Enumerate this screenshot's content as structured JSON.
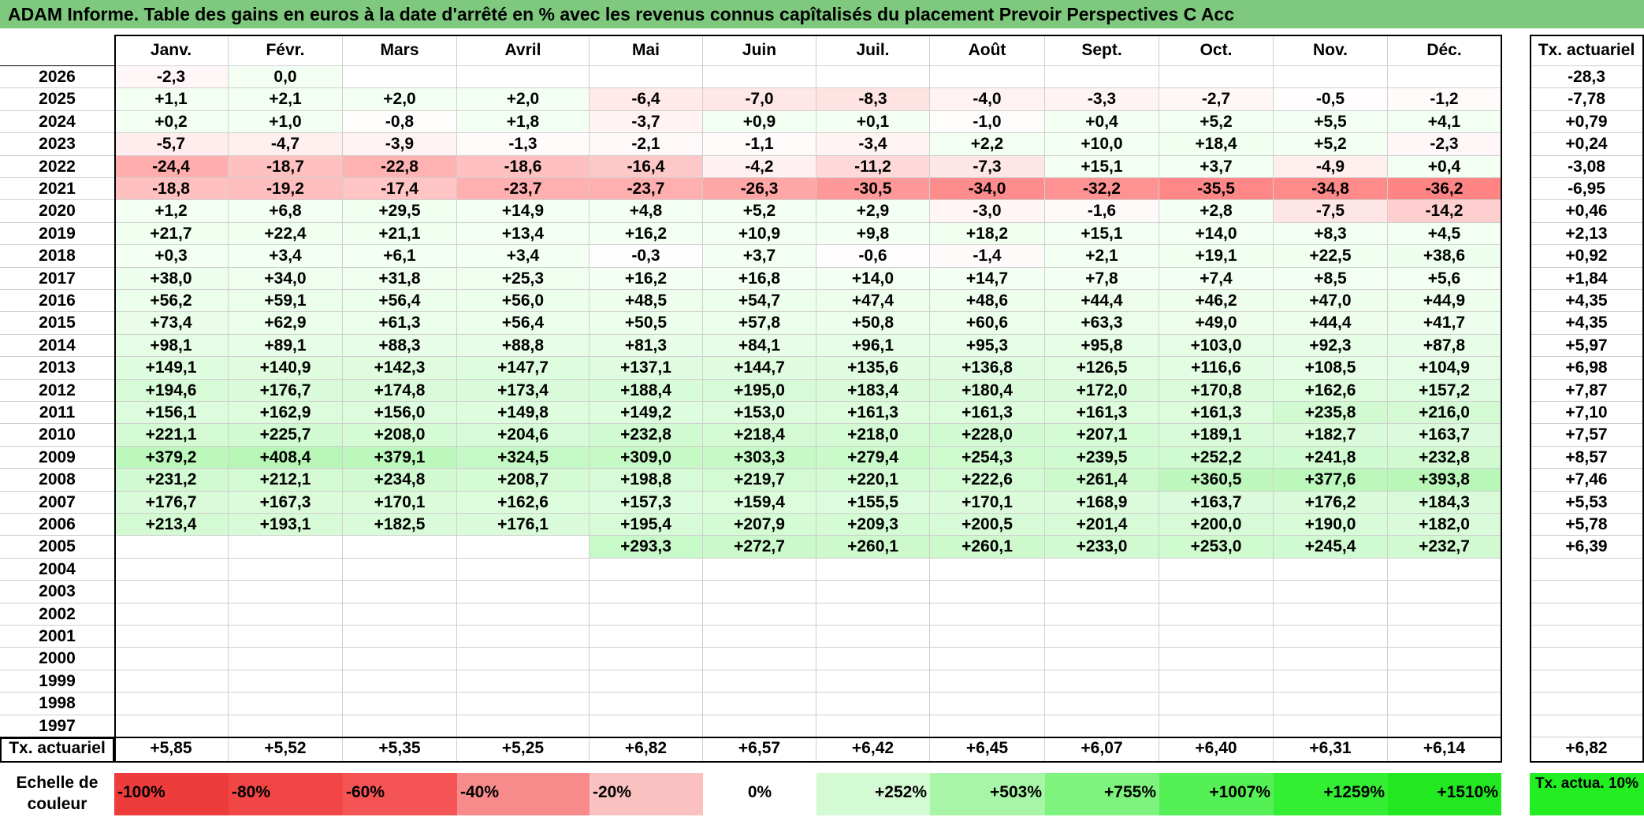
{
  "title": "ADAM Informe. Table des gains en euros à la date d'arrêté en % avec les revenus connus capîtalisés du placement Prevoir Perspectives C Acc",
  "header": {
    "months": [
      "Janv.",
      "Févr.",
      "Mars",
      "Avril",
      "Mai",
      "Juin",
      "Juil.",
      "Août",
      "Sept.",
      "Oct.",
      "Nov.",
      "Déc."
    ],
    "tx_label": "Tx. actuariel"
  },
  "chart_data": {
    "type": "table",
    "title": "ADAM Informe. Table des gains en euros à la date d'arrêté en % avec les revenus connus capîtalisés du placement Prevoir Perspectives C Acc",
    "columns": [
      "Janv.",
      "Févr.",
      "Mars",
      "Avril",
      "Mai",
      "Juin",
      "Juil.",
      "Août",
      "Sept.",
      "Oct.",
      "Nov.",
      "Déc.",
      "Tx. actuariel"
    ],
    "rows": [
      {
        "year": "2026",
        "values": [
          "-2,3",
          "0,0",
          "",
          "",
          "",
          "",
          "",
          "",
          "",
          "",
          "",
          ""
        ],
        "tx": "-28,3"
      },
      {
        "year": "2025",
        "values": [
          "+1,1",
          "+2,1",
          "+2,0",
          "+2,0",
          "-6,4",
          "-7,0",
          "-8,3",
          "-4,0",
          "-3,3",
          "-2,7",
          "-0,5",
          "-1,2"
        ],
        "tx": "-7,78"
      },
      {
        "year": "2024",
        "values": [
          "+0,2",
          "+1,0",
          "-0,8",
          "+1,8",
          "-3,7",
          "+0,9",
          "+0,1",
          "-1,0",
          "+0,4",
          "+5,2",
          "+5,5",
          "+4,1"
        ],
        "tx": "+0,79"
      },
      {
        "year": "2023",
        "values": [
          "-5,7",
          "-4,7",
          "-3,9",
          "-1,3",
          "-2,1",
          "-1,1",
          "-3,4",
          "+2,2",
          "+10,0",
          "+18,4",
          "+5,2",
          "-2,3"
        ],
        "tx": "+0,24"
      },
      {
        "year": "2022",
        "values": [
          "-24,4",
          "-18,7",
          "-22,8",
          "-18,6",
          "-16,4",
          "-4,2",
          "-11,2",
          "-7,3",
          "+15,1",
          "+3,7",
          "-4,9",
          "+0,4"
        ],
        "tx": "-3,08"
      },
      {
        "year": "2021",
        "values": [
          "-18,8",
          "-19,2",
          "-17,4",
          "-23,7",
          "-23,7",
          "-26,3",
          "-30,5",
          "-34,0",
          "-32,2",
          "-35,5",
          "-34,8",
          "-36,2"
        ],
        "tx": "-6,95"
      },
      {
        "year": "2020",
        "values": [
          "+1,2",
          "+6,8",
          "+29,5",
          "+14,9",
          "+4,8",
          "+5,2",
          "+2,9",
          "-3,0",
          "-1,6",
          "+2,8",
          "-7,5",
          "-14,2"
        ],
        "tx": "+0,46"
      },
      {
        "year": "2019",
        "values": [
          "+21,7",
          "+22,4",
          "+21,1",
          "+13,4",
          "+16,2",
          "+10,9",
          "+9,8",
          "+18,2",
          "+15,1",
          "+14,0",
          "+8,3",
          "+4,5"
        ],
        "tx": "+2,13"
      },
      {
        "year": "2018",
        "values": [
          "+0,3",
          "+3,4",
          "+6,1",
          "+3,4",
          "-0,3",
          "+3,7",
          "-0,6",
          "-1,4",
          "+2,1",
          "+19,1",
          "+22,5",
          "+38,6"
        ],
        "tx": "+0,92"
      },
      {
        "year": "2017",
        "values": [
          "+38,0",
          "+34,0",
          "+31,8",
          "+25,3",
          "+16,2",
          "+16,8",
          "+14,0",
          "+14,7",
          "+7,8",
          "+7,4",
          "+8,5",
          "+5,6"
        ],
        "tx": "+1,84"
      },
      {
        "year": "2016",
        "values": [
          "+56,2",
          "+59,1",
          "+56,4",
          "+56,0",
          "+48,5",
          "+54,7",
          "+47,4",
          "+48,6",
          "+44,4",
          "+46,2",
          "+47,0",
          "+44,9"
        ],
        "tx": "+4,35"
      },
      {
        "year": "2015",
        "values": [
          "+73,4",
          "+62,9",
          "+61,3",
          "+56,4",
          "+50,5",
          "+57,8",
          "+50,8",
          "+60,6",
          "+63,3",
          "+49,0",
          "+44,4",
          "+41,7"
        ],
        "tx": "+4,35"
      },
      {
        "year": "2014",
        "values": [
          "+98,1",
          "+89,1",
          "+88,3",
          "+88,8",
          "+81,3",
          "+84,1",
          "+96,1",
          "+95,3",
          "+95,8",
          "+103,0",
          "+92,3",
          "+87,8"
        ],
        "tx": "+5,97"
      },
      {
        "year": "2013",
        "values": [
          "+149,1",
          "+140,9",
          "+142,3",
          "+147,7",
          "+137,1",
          "+144,7",
          "+135,6",
          "+136,8",
          "+126,5",
          "+116,6",
          "+108,5",
          "+104,9"
        ],
        "tx": "+6,98"
      },
      {
        "year": "2012",
        "values": [
          "+194,6",
          "+176,7",
          "+174,8",
          "+173,4",
          "+188,4",
          "+195,0",
          "+183,4",
          "+180,4",
          "+172,0",
          "+170,8",
          "+162,6",
          "+157,2"
        ],
        "tx": "+7,87"
      },
      {
        "year": "2011",
        "values": [
          "+156,1",
          "+162,9",
          "+156,0",
          "+149,8",
          "+149,2",
          "+153,0",
          "+161,3",
          "+161,3",
          "+161,3",
          "+161,3",
          "+235,8",
          "+216,0"
        ],
        "tx": "+7,10"
      },
      {
        "year": "2010",
        "values": [
          "+221,1",
          "+225,7",
          "+208,0",
          "+204,6",
          "+232,8",
          "+218,4",
          "+218,0",
          "+228,0",
          "+207,1",
          "+189,1",
          "+182,7",
          "+163,7"
        ],
        "tx": "+7,57"
      },
      {
        "year": "2009",
        "values": [
          "+379,2",
          "+408,4",
          "+379,1",
          "+324,5",
          "+309,0",
          "+303,3",
          "+279,4",
          "+254,3",
          "+239,5",
          "+252,2",
          "+241,8",
          "+232,8"
        ],
        "tx": "+8,57"
      },
      {
        "year": "2008",
        "values": [
          "+231,2",
          "+212,1",
          "+234,8",
          "+208,7",
          "+198,8",
          "+219,7",
          "+220,1",
          "+222,6",
          "+261,4",
          "+360,5",
          "+377,6",
          "+393,8"
        ],
        "tx": "+7,46"
      },
      {
        "year": "2007",
        "values": [
          "+176,7",
          "+167,3",
          "+170,1",
          "+162,6",
          "+157,3",
          "+159,4",
          "+155,5",
          "+170,1",
          "+168,9",
          "+163,7",
          "+176,2",
          "+184,3"
        ],
        "tx": "+5,53"
      },
      {
        "year": "2006",
        "values": [
          "+213,4",
          "+193,1",
          "+182,5",
          "+176,1",
          "+195,4",
          "+207,9",
          "+209,3",
          "+200,5",
          "+201,4",
          "+200,0",
          "+190,0",
          "+182,0"
        ],
        "tx": "+5,78"
      },
      {
        "year": "2005",
        "values": [
          "",
          "",
          "",
          "",
          "+293,3",
          "+272,7",
          "+260,1",
          "+260,1",
          "+233,0",
          "+253,0",
          "+245,4",
          "+232,7"
        ],
        "tx": "+6,39"
      },
      {
        "year": "2004",
        "values": [
          "",
          "",
          "",
          "",
          "",
          "",
          "",
          "",
          "",
          "",
          "",
          ""
        ],
        "tx": ""
      },
      {
        "year": "2003",
        "values": [
          "",
          "",
          "",
          "",
          "",
          "",
          "",
          "",
          "",
          "",
          "",
          ""
        ],
        "tx": ""
      },
      {
        "year": "2002",
        "values": [
          "",
          "",
          "",
          "",
          "",
          "",
          "",
          "",
          "",
          "",
          "",
          ""
        ],
        "tx": ""
      },
      {
        "year": "2001",
        "values": [
          "",
          "",
          "",
          "",
          "",
          "",
          "",
          "",
          "",
          "",
          "",
          ""
        ],
        "tx": ""
      },
      {
        "year": "2000",
        "values": [
          "",
          "",
          "",
          "",
          "",
          "",
          "",
          "",
          "",
          "",
          "",
          ""
        ],
        "tx": ""
      },
      {
        "year": "1999",
        "values": [
          "",
          "",
          "",
          "",
          "",
          "",
          "",
          "",
          "",
          "",
          "",
          ""
        ],
        "tx": ""
      },
      {
        "year": "1998",
        "values": [
          "",
          "",
          "",
          "",
          "",
          "",
          "",
          "",
          "",
          "",
          "",
          ""
        ],
        "tx": ""
      },
      {
        "year": "1997",
        "values": [
          "",
          "",
          "",
          "",
          "",
          "",
          "",
          "",
          "",
          "",
          "",
          ""
        ],
        "tx": ""
      }
    ],
    "footer": {
      "label": "Tx. actuariel",
      "values": [
        "+5,85",
        "+5,52",
        "+5,35",
        "+5,25",
        "+6,82",
        "+6,57",
        "+6,42",
        "+6,45",
        "+6,07",
        "+6,40",
        "+6,31",
        "+6,14"
      ],
      "tx": "+6,82"
    },
    "color_scale": {
      "label": "Echelle de couleur",
      "stops": [
        {
          "label": "-100%",
          "color": "#ee3b3b",
          "align": "left"
        },
        {
          "label": "-80%",
          "color": "#f24646",
          "align": "left"
        },
        {
          "label": "-60%",
          "color": "#f55454",
          "align": "left"
        },
        {
          "label": "-40%",
          "color": "#f78a8a",
          "align": "left"
        },
        {
          "label": "-20%",
          "color": "#fbc0c0",
          "align": "left"
        },
        {
          "label": "0%",
          "color": "#ffffff",
          "align": "center"
        },
        {
          "label": "+252%",
          "color": "#d3fad3",
          "align": "right"
        },
        {
          "label": "+503%",
          "color": "#a8f5a8",
          "align": "right"
        },
        {
          "label": "+755%",
          "color": "#7ef37e",
          "align": "right"
        },
        {
          "label": "+1007%",
          "color": "#55f055",
          "align": "right"
        },
        {
          "label": "+1259%",
          "color": "#33ee33",
          "align": "right"
        },
        {
          "label": "+1510%",
          "color": "#22e822",
          "align": "right"
        }
      ],
      "tx_legend": "Tx. actua. 10%",
      "tx_legend_color": "#22ee22"
    }
  }
}
